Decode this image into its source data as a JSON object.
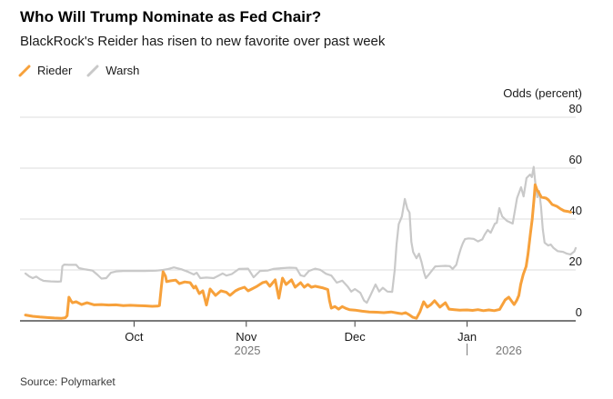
{
  "header": {
    "title": "Who Will Trump Nominate as Fed Chair?",
    "subtitle": "BlackRock's Reider has risen to new favorite over past week"
  },
  "legend": {
    "items": [
      {
        "label": "Rieder",
        "color": "#F7A13B"
      },
      {
        "label": "Warsh",
        "color": "#C9C9C9"
      }
    ]
  },
  "source": "Source: Polymarket",
  "chart_data": {
    "type": "line",
    "title": "Who Will Trump Nominate as Fed Chair?",
    "subtitle": "BlackRock's Reider has risen to new favorite over past week",
    "ylabel": "Odds (percent)",
    "xlabel": "",
    "x_unit": "days since Sep 1, 2025",
    "x_range_days": [
      0,
      152
    ],
    "ylim": [
      0,
      80
    ],
    "y_ticks": [
      0,
      20,
      40,
      60,
      80
    ],
    "grid": true,
    "legend_position": "top-left",
    "x_ticks": [
      {
        "label": "Oct",
        "day": 30
      },
      {
        "label": "Nov",
        "day": 61
      },
      {
        "label": "Dec",
        "day": 91
      },
      {
        "label": "Jan",
        "day": 122
      }
    ],
    "year_labels": [
      {
        "label": "2025",
        "day": 61.3
      },
      {
        "label": "2026",
        "day": 133.5,
        "separator_day": 122
      }
    ],
    "colors": {
      "grid": "#DEDEDE",
      "axis": "#7A7A7A",
      "tick": "#3C3C3C",
      "tick_text": "#1A1A1A",
      "year_text": "#777777"
    },
    "series": [
      {
        "name": "Rieder",
        "color": "#F7A13B",
        "stroke_width": 3,
        "points": [
          [
            0,
            2.3
          ],
          [
            2,
            1.8
          ],
          [
            4,
            1.5
          ],
          [
            6,
            1.3
          ],
          [
            8,
            1.1
          ],
          [
            10,
            1.0
          ],
          [
            11,
            1.2
          ],
          [
            11.5,
            2.0
          ],
          [
            12,
            9.3
          ],
          [
            12.5,
            8.0
          ],
          [
            13,
            7.1
          ],
          [
            14,
            7.5
          ],
          [
            15.5,
            6.4
          ],
          [
            17,
            7.1
          ],
          [
            19,
            6.3
          ],
          [
            21,
            6.4
          ],
          [
            23,
            6.2
          ],
          [
            25,
            6.3
          ],
          [
            27,
            6.0
          ],
          [
            29,
            6.1
          ],
          [
            31,
            6.0
          ],
          [
            33,
            5.9
          ],
          [
            35,
            5.7
          ],
          [
            36.5,
            5.8
          ],
          [
            37,
            6.0
          ],
          [
            37.5,
            13.0
          ],
          [
            38,
            19.3
          ],
          [
            38.7,
            17.5
          ],
          [
            39,
            15.4
          ],
          [
            40,
            15.7
          ],
          [
            41.5,
            16.0
          ],
          [
            42.5,
            14.6
          ],
          [
            44,
            15.3
          ],
          [
            45.5,
            15.0
          ],
          [
            46.5,
            12.9
          ],
          [
            47,
            13.6
          ],
          [
            48,
            10.7
          ],
          [
            49,
            11.8
          ],
          [
            50,
            6.2
          ],
          [
            51,
            12.5
          ],
          [
            52.5,
            10.0
          ],
          [
            54,
            11.8
          ],
          [
            55.5,
            11.2
          ],
          [
            56.5,
            10.0
          ],
          [
            58,
            11.8
          ],
          [
            59,
            12.5
          ],
          [
            60.5,
            13.2
          ],
          [
            61.5,
            11.8
          ],
          [
            62.5,
            12.5
          ],
          [
            64,
            13.6
          ],
          [
            65.5,
            15.0
          ],
          [
            66.5,
            15.4
          ],
          [
            67.5,
            13.6
          ],
          [
            69,
            16.1
          ],
          [
            70,
            8.9
          ],
          [
            71,
            16.8
          ],
          [
            72,
            14.3
          ],
          [
            73.5,
            16.1
          ],
          [
            74.5,
            13.2
          ],
          [
            76,
            15.0
          ],
          [
            77,
            13.2
          ],
          [
            78,
            14.3
          ],
          [
            79,
            13.2
          ],
          [
            80,
            13.6
          ],
          [
            82,
            13.0
          ],
          [
            83.5,
            12.3
          ],
          [
            84,
            8.0
          ],
          [
            84.5,
            5.0
          ],
          [
            85.5,
            5.6
          ],
          [
            86.5,
            4.6
          ],
          [
            87.5,
            5.6
          ],
          [
            88.5,
            4.9
          ],
          [
            89.5,
            4.4
          ],
          [
            91,
            4.2
          ],
          [
            93,
            3.8
          ],
          [
            95,
            3.5
          ],
          [
            97,
            3.4
          ],
          [
            99,
            3.2
          ],
          [
            101,
            3.5
          ],
          [
            103,
            3.0
          ],
          [
            104,
            2.8
          ],
          [
            105,
            3.2
          ],
          [
            106,
            2.4
          ],
          [
            107,
            1.4
          ],
          [
            108,
            1.0
          ],
          [
            109,
            3.6
          ],
          [
            110,
            7.5
          ],
          [
            111,
            5.4
          ],
          [
            112,
            6.4
          ],
          [
            113,
            7.9
          ],
          [
            114.5,
            5.4
          ],
          [
            116,
            7.1
          ],
          [
            117,
            4.6
          ],
          [
            118.5,
            4.4
          ],
          [
            120,
            4.2
          ],
          [
            122,
            4.3
          ],
          [
            123.5,
            4.1
          ],
          [
            125,
            4.4
          ],
          [
            126.5,
            4.0
          ],
          [
            128,
            4.3
          ],
          [
            129.5,
            4.0
          ],
          [
            131,
            4.5
          ],
          [
            132.5,
            8.2
          ],
          [
            133.5,
            9.3
          ],
          [
            135,
            6.4
          ],
          [
            135.7,
            8.0
          ],
          [
            136.3,
            10.0
          ],
          [
            136.8,
            14.3
          ],
          [
            137.5,
            18.2
          ],
          [
            138.3,
            21.4
          ],
          [
            138.8,
            26.1
          ],
          [
            139.5,
            34.3
          ],
          [
            140,
            40.0
          ],
          [
            140.5,
            48.0
          ],
          [
            140.8,
            53.5
          ],
          [
            141.3,
            51.5
          ],
          [
            141.8,
            50.4
          ],
          [
            142.5,
            48.6
          ],
          [
            143.8,
            48.2
          ],
          [
            144.5,
            47.5
          ],
          [
            145.5,
            45.7
          ],
          [
            146.8,
            45.0
          ],
          [
            147.8,
            44.0
          ],
          [
            148.8,
            43.2
          ],
          [
            149.8,
            43.0
          ],
          [
            150.6,
            42.7
          ]
        ]
      },
      {
        "name": "Warsh",
        "color": "#C9C9C9",
        "stroke_width": 2.2,
        "points": [
          [
            0,
            18.6
          ],
          [
            1,
            17.5
          ],
          [
            2,
            16.8
          ],
          [
            3,
            17.4
          ],
          [
            4,
            16.4
          ],
          [
            5,
            15.7
          ],
          [
            7,
            15.5
          ],
          [
            9,
            15.4
          ],
          [
            9.8,
            15.5
          ],
          [
            10.2,
            21.5
          ],
          [
            10.7,
            22.1
          ],
          [
            12,
            22.0
          ],
          [
            14,
            22.0
          ],
          [
            14.8,
            20.7
          ],
          [
            16.5,
            20.2
          ],
          [
            18.5,
            19.8
          ],
          [
            19.8,
            18.2
          ],
          [
            21,
            16.6
          ],
          [
            22.3,
            16.8
          ],
          [
            23.6,
            18.9
          ],
          [
            25,
            19.4
          ],
          [
            27,
            19.6
          ],
          [
            30,
            19.6
          ],
          [
            33,
            19.6
          ],
          [
            36,
            19.7
          ],
          [
            38,
            20.0
          ],
          [
            39.5,
            20.4
          ],
          [
            41,
            21.0
          ],
          [
            43,
            20.3
          ],
          [
            45,
            19.2
          ],
          [
            46.5,
            18.2
          ],
          [
            47.3,
            18.9
          ],
          [
            48.3,
            16.8
          ],
          [
            50,
            17.0
          ],
          [
            52,
            16.8
          ],
          [
            54.5,
            18.6
          ],
          [
            55.5,
            17.8
          ],
          [
            57,
            18.4
          ],
          [
            59,
            20.4
          ],
          [
            61.5,
            20.5
          ],
          [
            63,
            17.1
          ],
          [
            64.8,
            19.6
          ],
          [
            67,
            19.8
          ],
          [
            68.5,
            20.4
          ],
          [
            71,
            20.7
          ],
          [
            73,
            20.9
          ],
          [
            74.8,
            20.8
          ],
          [
            76,
            17.9
          ],
          [
            77,
            17.5
          ],
          [
            78.3,
            19.6
          ],
          [
            80,
            20.5
          ],
          [
            81.5,
            20.0
          ],
          [
            83,
            18.5
          ],
          [
            84.5,
            17.8
          ],
          [
            86,
            15.0
          ],
          [
            87.5,
            15.8
          ],
          [
            89,
            13.5
          ],
          [
            90,
            11.5
          ],
          [
            91,
            12.5
          ],
          [
            92.5,
            11.0
          ],
          [
            93.5,
            8.0
          ],
          [
            94.3,
            7.1
          ],
          [
            95.3,
            10.0
          ],
          [
            96.7,
            14.3
          ],
          [
            97.7,
            11.5
          ],
          [
            98.7,
            13.0
          ],
          [
            100,
            11.5
          ],
          [
            101.3,
            11.4
          ],
          [
            102,
            20.0
          ],
          [
            102.5,
            30.0
          ],
          [
            103.1,
            38.0
          ],
          [
            104,
            41.0
          ],
          [
            104.8,
            47.9
          ],
          [
            105.5,
            44.0
          ],
          [
            106.1,
            42.5
          ],
          [
            106.6,
            31.0
          ],
          [
            107.1,
            27.0
          ],
          [
            108,
            24.6
          ],
          [
            108.7,
            26.4
          ],
          [
            109.4,
            23.2
          ],
          [
            110.1,
            19.0
          ],
          [
            110.6,
            16.8
          ],
          [
            111.6,
            18.5
          ],
          [
            112.2,
            19.6
          ],
          [
            113.2,
            21.4
          ],
          [
            114.5,
            21.5
          ],
          [
            116,
            21.6
          ],
          [
            117.2,
            21.5
          ],
          [
            118,
            20.4
          ],
          [
            119,
            22.0
          ],
          [
            119.7,
            25.7
          ],
          [
            120.3,
            28.5
          ],
          [
            120.8,
            30.4
          ],
          [
            121.4,
            32.1
          ],
          [
            122.4,
            32.4
          ],
          [
            123.8,
            32.2
          ],
          [
            125,
            31.2
          ],
          [
            126.2,
            32.0
          ],
          [
            126.9,
            34.0
          ],
          [
            127.7,
            35.7
          ],
          [
            128.5,
            34.6
          ],
          [
            129.7,
            38.2
          ],
          [
            130.2,
            38.5
          ],
          [
            130.9,
            44.3
          ],
          [
            131.7,
            41.0
          ],
          [
            133,
            39.3
          ],
          [
            134.6,
            38.2
          ],
          [
            135.8,
            48.2
          ],
          [
            136.9,
            52.5
          ],
          [
            137.6,
            48.9
          ],
          [
            138.4,
            56.1
          ],
          [
            139.4,
            57.5
          ],
          [
            139.9,
            56.5
          ],
          [
            140.4,
            60.5
          ],
          [
            141,
            52.0
          ],
          [
            141.4,
            48.6
          ],
          [
            141.9,
            51.0
          ],
          [
            142.4,
            45.0
          ],
          [
            142.9,
            36.0
          ],
          [
            143.4,
            30.7
          ],
          [
            144.4,
            29.6
          ],
          [
            145.1,
            30.0
          ],
          [
            145.9,
            28.6
          ],
          [
            147,
            27.4
          ],
          [
            148.5,
            27.1
          ],
          [
            149.6,
            26.4
          ],
          [
            150.6,
            26.1
          ],
          [
            151.6,
            27.2
          ],
          [
            152,
            28.6
          ]
        ]
      }
    ]
  }
}
